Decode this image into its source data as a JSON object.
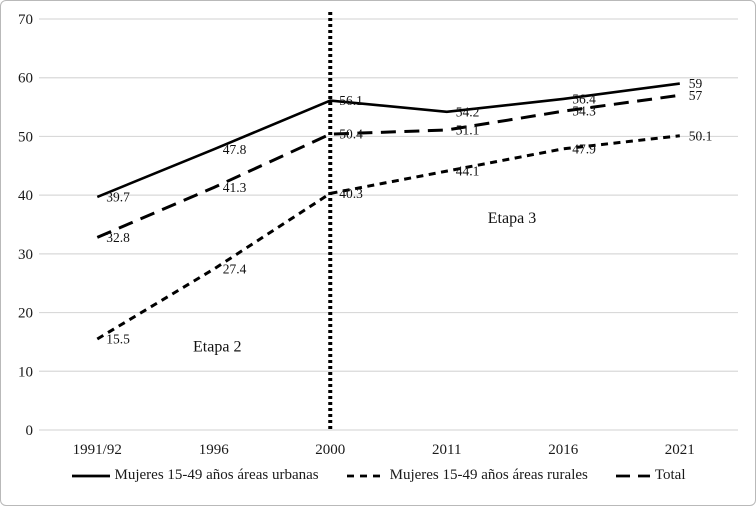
{
  "figure": {
    "background": "#ffffff",
    "border_color": "#b9b9b9",
    "grid_color": "#d9d9d9",
    "line_color": "#000000",
    "text_color": "#1a1a1a"
  },
  "chart_data": {
    "type": "line",
    "title": "",
    "xlabel": "",
    "ylabel": "",
    "categories": [
      "1991/92",
      "1996",
      "2000",
      "2011",
      "2016",
      "2021"
    ],
    "series": [
      {
        "name": "Mujeres 15-49 años áreas urbanas",
        "dash": "solid",
        "values": [
          39.7,
          47.8,
          56.1,
          54.2,
          56.4,
          59
        ],
        "labels": [
          "39.7",
          "47.8",
          "56.1",
          "54.2",
          "56.4",
          "59"
        ]
      },
      {
        "name": "Mujeres 15-49 años áreas rurales",
        "dash": "short-dash",
        "values": [
          15.5,
          27.4,
          40.3,
          44.1,
          47.9,
          50.1
        ],
        "labels": [
          "15.5",
          "27.4",
          "40.3",
          "44.1",
          "47.9",
          "50.1"
        ]
      },
      {
        "name": "Total",
        "dash": "long-dash",
        "values": [
          32.8,
          41.3,
          50.4,
          51.1,
          54.3,
          57
        ],
        "labels": [
          "32.8",
          "41.3",
          "50.4",
          "51.1",
          "54.3",
          "57"
        ]
      }
    ],
    "ylim": [
      0,
      70
    ],
    "yticks": [
      0,
      10,
      20,
      30,
      40,
      50,
      60,
      70
    ],
    "grid": true,
    "legend_position": "bottom",
    "annotations": [
      {
        "text": "Etapa 2",
        "x_index": 1.03,
        "y": 14.2
      },
      {
        "text": "Etapa 3",
        "x_index": 3.56,
        "y": 36.1
      }
    ],
    "divider": {
      "x_index": 2,
      "style": "dotted"
    }
  }
}
